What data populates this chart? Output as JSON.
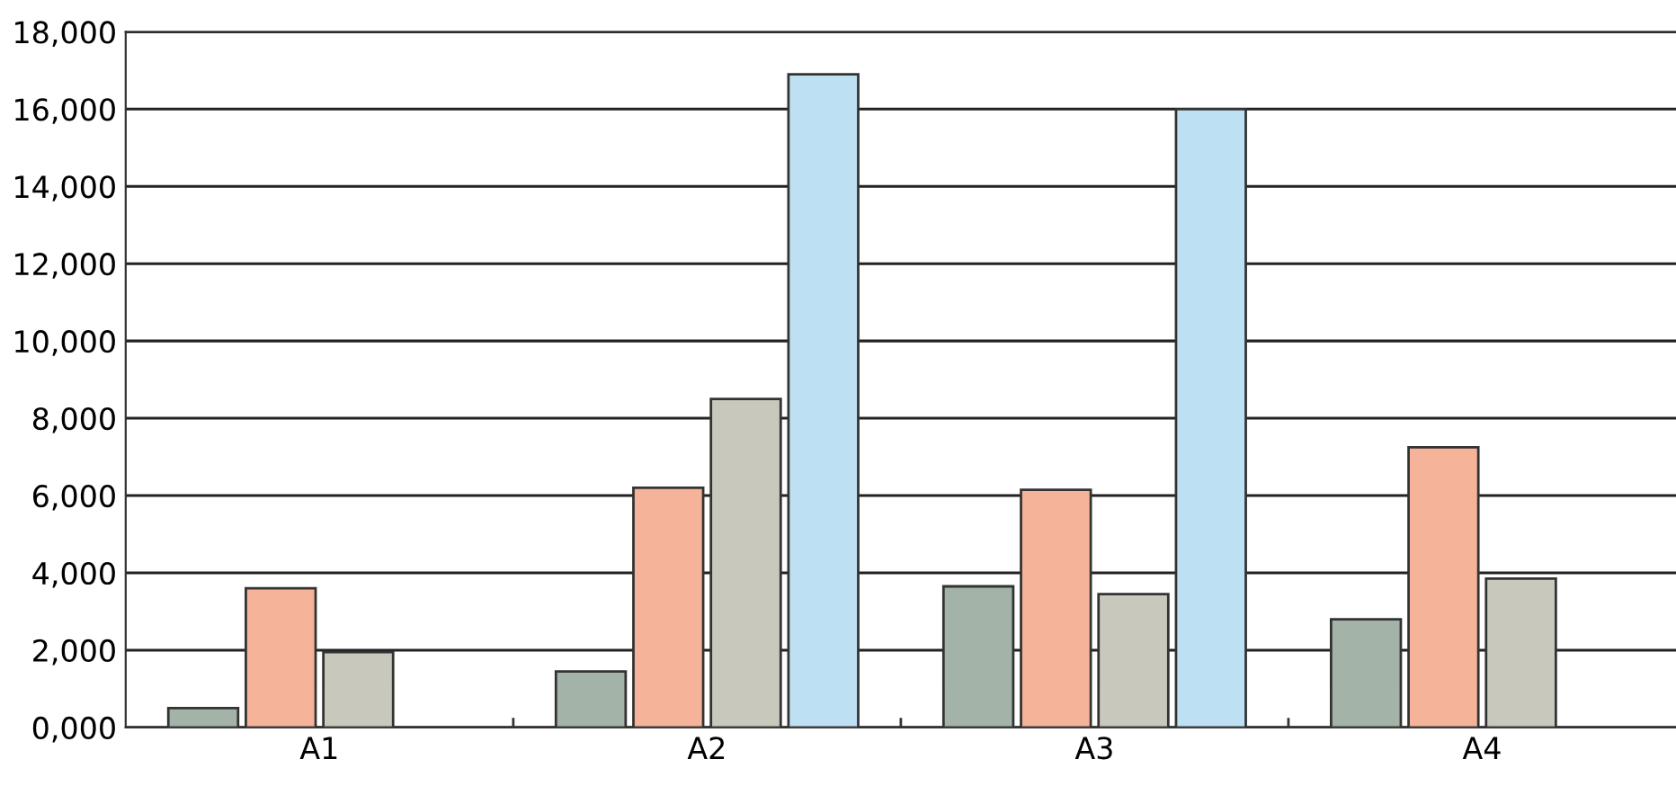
{
  "chart_data": {
    "type": "bar",
    "categories": [
      "A1",
      "A2",
      "A3",
      "A4"
    ],
    "series": [
      {
        "color": "#a3b3a8",
        "values": [
          500,
          1450,
          3650,
          2800
        ]
      },
      {
        "color": "#f5b39a",
        "values": [
          3600,
          6200,
          6150,
          7250
        ]
      },
      {
        "color": "#c9c8bc",
        "values": [
          1950,
          8500,
          3450,
          3850
        ]
      },
      {
        "color": "#bde0f2",
        "values": [
          null,
          16900,
          16000,
          null
        ]
      }
    ],
    "ylim": [
      0,
      18000
    ],
    "yticks": [
      {
        "value": 0,
        "label": "0,000"
      },
      {
        "value": 2000,
        "label": "2,000"
      },
      {
        "value": 4000,
        "label": "4,000"
      },
      {
        "value": 6000,
        "label": "6,000"
      },
      {
        "value": 8000,
        "label": "8,000"
      },
      {
        "value": 10000,
        "label": "10,000"
      },
      {
        "value": 12000,
        "label": "12,000"
      },
      {
        "value": 14000,
        "label": "14,000"
      },
      {
        "value": 16000,
        "label": "16,000"
      },
      {
        "value": 18000,
        "label": "18,000"
      }
    ],
    "grid": "y"
  }
}
